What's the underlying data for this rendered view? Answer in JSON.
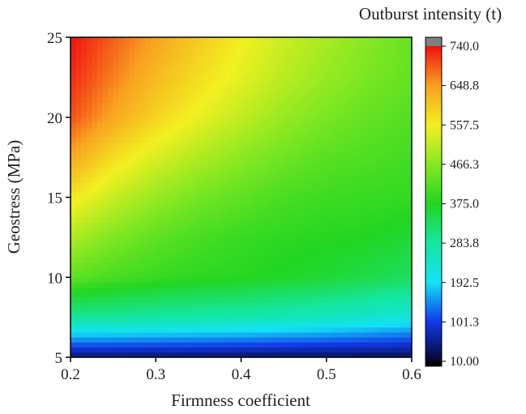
{
  "chart_data": {
    "type": "contour",
    "xlabel": "Firmness coefficient",
    "ylabel": "Geostress (MPa)",
    "colorbar_label": "Outburst intensity (t)",
    "x": [
      0.2,
      0.25,
      0.3,
      0.35,
      0.4,
      0.45,
      0.5,
      0.55,
      0.6
    ],
    "y": [
      5,
      7.5,
      10,
      12.5,
      15,
      17.5,
      20,
      22.5,
      25
    ],
    "z": [
      [
        40,
        40,
        38,
        37,
        35,
        33,
        32,
        30,
        28
      ],
      [
        290,
        285,
        280,
        275,
        270,
        260,
        250,
        235,
        220
      ],
      [
        430,
        410,
        395,
        385,
        380,
        370,
        360,
        345,
        330
      ],
      [
        500,
        460,
        430,
        410,
        395,
        385,
        380,
        375,
        360
      ],
      [
        570,
        520,
        480,
        450,
        430,
        410,
        400,
        395,
        390
      ],
      [
        640,
        580,
        535,
        500,
        470,
        445,
        425,
        415,
        405
      ],
      [
        700,
        640,
        590,
        550,
        515,
        480,
        455,
        435,
        420
      ],
      [
        725,
        670,
        620,
        580,
        545,
        510,
        480,
        455,
        435
      ],
      [
        740,
        690,
        645,
        600,
        560,
        525,
        495,
        465,
        440
      ]
    ],
    "xlim": [
      0.2,
      0.6
    ],
    "ylim": [
      5,
      25
    ],
    "xticks": [
      0.2,
      0.3,
      0.4,
      0.5,
      0.6
    ],
    "yticks": [
      5,
      10,
      15,
      20,
      25
    ],
    "zlim": [
      10,
      740
    ],
    "zticks": [
      {
        "value": 10,
        "label": "10.00"
      },
      101.3,
      192.5,
      283.8,
      {
        "value": 375,
        "label": "375.0"
      },
      466.3,
      557.5,
      648.8,
      {
        "value": 740,
        "label": "740.0"
      }
    ],
    "colormap": [
      "#06062e",
      "#1238e8",
      "#12e2f6",
      "#14e6a0",
      "#22d622",
      "#86e822",
      "#f2f020",
      "#f8a020",
      "#f01010"
    ]
  }
}
